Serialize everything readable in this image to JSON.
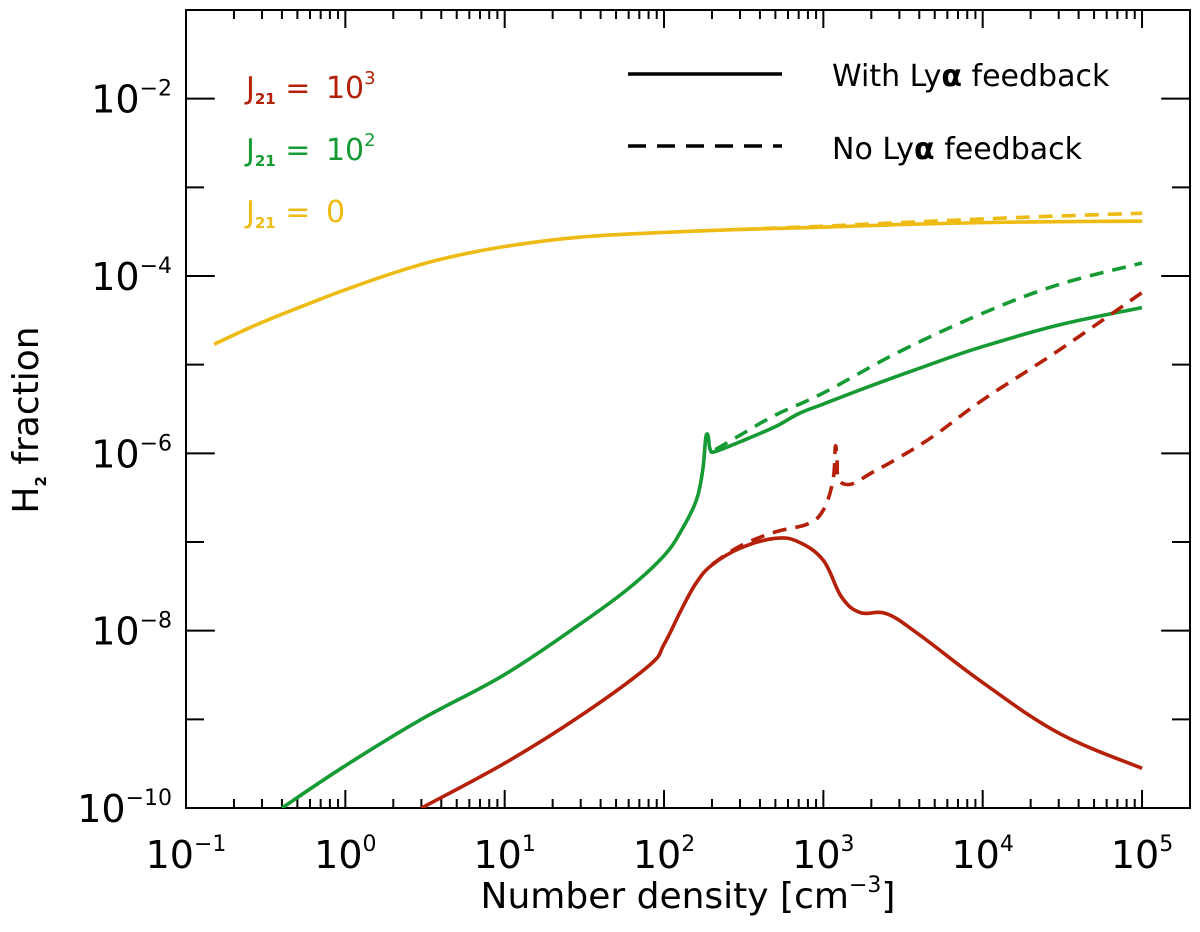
{
  "chart_data": {
    "type": "line",
    "x_scale": "log",
    "y_scale": "log",
    "xlim": [
      0.1,
      200000
    ],
    "ylim": [
      1e-10,
      0.1
    ],
    "xlabel": "Number density [cm",
    "xlabel_sup": "−3",
    "xlabel_close": "]",
    "ylabel": "H",
    "ylabel_sub": "2",
    "ylabel_rest": " fraction",
    "x_ticks": [
      {
        "base": "10",
        "exp": "−1",
        "value": 0.1
      },
      {
        "base": "10",
        "exp": "0",
        "value": 1
      },
      {
        "base": "10",
        "exp": "1",
        "value": 10
      },
      {
        "base": "10",
        "exp": "2",
        "value": 100
      },
      {
        "base": "10",
        "exp": "3",
        "value": 1000
      },
      {
        "base": "10",
        "exp": "4",
        "value": 10000
      },
      {
        "base": "10",
        "exp": "5",
        "value": 100000
      }
    ],
    "y_ticks": [
      {
        "base": "10",
        "exp": "−10",
        "value": 1e-10
      },
      {
        "base": "10",
        "exp": "−8",
        "value": 1e-08
      },
      {
        "base": "10",
        "exp": "−6",
        "value": 1e-06
      },
      {
        "base": "10",
        "exp": "−4",
        "value": 0.0001
      },
      {
        "base": "10",
        "exp": "−2",
        "value": 0.01
      }
    ],
    "y_minor_ticks": [
      1e-09,
      1e-07,
      1e-05,
      0.001
    ],
    "legend": {
      "placement": "top-right",
      "entries": [
        {
          "style": "solid",
          "text": "With Ly",
          "alpha": "α",
          "rest": " feedback"
        },
        {
          "style": "dashed",
          "text": "No Ly",
          "alpha": "α",
          "rest": " feedback"
        }
      ]
    },
    "j_labels": [
      {
        "j": "J",
        "sub": "21",
        "eq": " = ",
        "val": "10",
        "sup": "3",
        "color": "#b52108"
      },
      {
        "j": "J",
        "sub": "21",
        "eq": " = ",
        "val": "10",
        "sup": "2",
        "color": "#169a34"
      },
      {
        "j": "J",
        "sub": "21",
        "eq": " = ",
        "val": "0",
        "sup": "",
        "color": "#eebb14"
      }
    ],
    "series": [
      {
        "name": "J21 = 0 with Lyα feedback",
        "color": "#eebb14",
        "style": "solid",
        "points": [
          [
            0.15,
            1.7e-05
          ],
          [
            0.3,
            3e-05
          ],
          [
            0.7,
            5.5e-05
          ],
          [
            1,
            7e-05
          ],
          [
            2,
            0.000108
          ],
          [
            4,
            0.000155
          ],
          [
            10,
            0.000215
          ],
          [
            30,
            0.000275
          ],
          [
            100,
            0.00031
          ],
          [
            300,
            0.000335
          ],
          [
            1000,
            0.000355
          ],
          [
            3000,
            0.00038
          ],
          [
            10000,
            0.0004
          ],
          [
            30000,
            0.00041
          ],
          [
            100000,
            0.000415
          ]
        ]
      },
      {
        "name": "J21 = 0 no Lyα feedback",
        "color": "#eebb14",
        "style": "dashed",
        "points": [
          [
            300,
            0.000335
          ],
          [
            1000,
            0.000365
          ],
          [
            3000,
            0.0004
          ],
          [
            10000,
            0.00044
          ],
          [
            30000,
            0.000475
          ],
          [
            100000,
            0.00051
          ]
        ]
      },
      {
        "name": "J21 = 100 with Lyα feedback",
        "color": "#169a34",
        "style": "solid",
        "points": [
          [
            0.4,
            1e-10
          ],
          [
            1,
            3e-10
          ],
          [
            3,
            1e-09
          ],
          [
            10,
            3.2e-09
          ],
          [
            30,
            1.2e-08
          ],
          [
            60,
            3e-08
          ],
          [
            100,
            7e-08
          ],
          [
            130,
            1.4e-07
          ],
          [
            160,
            3e-07
          ],
          [
            175,
            6.5e-07
          ],
          [
            182,
            1.4e-06
          ],
          [
            186,
            1.65e-06
          ],
          [
            190,
            1.5e-06
          ],
          [
            195,
            1.1e-06
          ],
          [
            210,
            1.05e-06
          ],
          [
            300,
            1.35e-06
          ],
          [
            500,
            2e-06
          ],
          [
            700,
            2.8e-06
          ],
          [
            1000,
            3.6e-06
          ],
          [
            2000,
            5.8e-06
          ],
          [
            5000,
            1.05e-05
          ],
          [
            10000,
            1.6e-05
          ],
          [
            30000,
            2.8e-05
          ],
          [
            100000,
            4.4e-05
          ]
        ]
      },
      {
        "name": "J21 = 100 no Lyα feedback",
        "color": "#169a34",
        "style": "dashed",
        "points": [
          [
            210,
            1.1e-06
          ],
          [
            300,
            1.6e-06
          ],
          [
            500,
            2.7e-06
          ],
          [
            1000,
            4.8e-06
          ],
          [
            3000,
            1.4e-05
          ],
          [
            10000,
            3.8e-05
          ],
          [
            30000,
            8e-05
          ],
          [
            100000,
            0.00014
          ]
        ]
      },
      {
        "name": "J21 = 1000 with Lyα feedback",
        "color": "#b52108",
        "style": "solid",
        "points": [
          [
            3,
            1e-10
          ],
          [
            10,
            3.2e-10
          ],
          [
            30,
            1.1e-09
          ],
          [
            80,
            4e-09
          ],
          [
            100,
            7e-09
          ],
          [
            130,
            1.8e-08
          ],
          [
            160,
            3.5e-08
          ],
          [
            200,
            5.5e-08
          ],
          [
            300,
            8.5e-08
          ],
          [
            500,
            1.1e-07
          ],
          [
            700,
            1e-07
          ],
          [
            1000,
            6.2e-08
          ],
          [
            1300,
            2.4e-08
          ],
          [
            1700,
            1.6e-08
          ],
          [
            2500,
            1.55e-08
          ],
          [
            4000,
            9e-09
          ],
          [
            10000,
            2.6e-09
          ],
          [
            30000,
            7e-10
          ],
          [
            100000,
            2.8e-10
          ]
        ]
      },
      {
        "name": "J21 = 1000 no Lyα feedback",
        "color": "#b52108",
        "style": "dashed",
        "points": [
          [
            200,
            5.6e-08
          ],
          [
            300,
            9e-08
          ],
          [
            500,
            1.3e-07
          ],
          [
            800,
            1.6e-07
          ],
          [
            1000,
            2.3e-07
          ],
          [
            1150,
            5e-07
          ],
          [
            1190,
            1.2e-06
          ],
          [
            1220,
            8e-07
          ],
          [
            1250,
            5e-07
          ],
          [
            1500,
            4.5e-07
          ],
          [
            2000,
            6e-07
          ],
          [
            3000,
            9e-07
          ],
          [
            5000,
            1.6e-06
          ],
          [
            10000,
            4e-06
          ],
          [
            30000,
            1.45e-05
          ],
          [
            100000,
            6.5e-05
          ]
        ]
      }
    ]
  }
}
